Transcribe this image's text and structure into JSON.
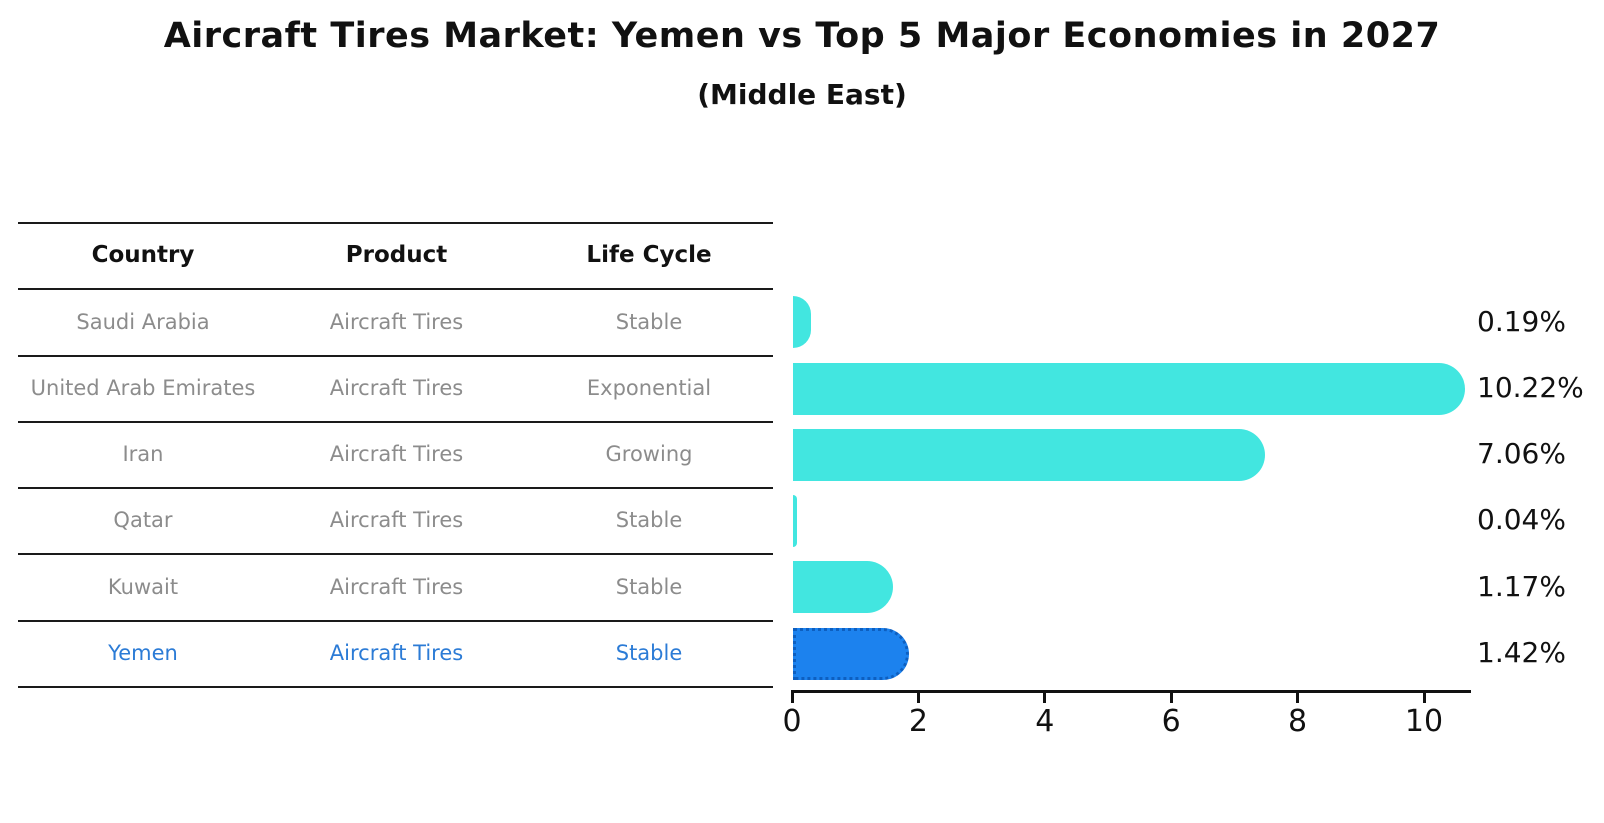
{
  "page": {
    "background": "#ffffff"
  },
  "chart_data": {
    "type": "bar",
    "orientation": "horizontal",
    "title": "Aircraft Tires Market: Yemen vs Top 5 Major Economies in 2027",
    "subtitle": "(Middle East)",
    "categories": [
      "Saudi Arabia",
      "United Arab Emirates",
      "Iran",
      "Qatar",
      "Kuwait",
      "Yemen"
    ],
    "values": [
      0.19,
      10.22,
      7.06,
      0.04,
      1.17,
      1.42
    ],
    "value_labels": [
      "0.19%",
      "10.22%",
      "7.06%",
      "0.04%",
      "1.17%",
      "1.42%"
    ],
    "xlabel": "",
    "ylabel": "",
    "xticks": [
      0,
      2,
      4,
      6,
      8,
      10
    ],
    "xlim": [
      0,
      10.72
    ],
    "grid": false,
    "legend": false,
    "bar_color": "#42E6E0",
    "highlight": {
      "index": 5,
      "category": "Yemen",
      "color": "#1C82EE",
      "edge_style": "dotted",
      "edge_color": "#0D5FC0"
    }
  },
  "table": {
    "headers": [
      "Country",
      "Product",
      "Life Cycle"
    ],
    "rows": [
      [
        "Saudi Arabia",
        "Aircraft Tires",
        "Stable"
      ],
      [
        "United Arab Emirates",
        "Aircraft Tires",
        "Exponential"
      ],
      [
        "Iran",
        "Aircraft Tires",
        "Growing"
      ],
      [
        "Qatar",
        "Aircraft Tires",
        "Stable"
      ],
      [
        "Kuwait",
        "Aircraft Tires",
        "Stable"
      ],
      [
        "Yemen",
        "Aircraft Tires",
        "Stable"
      ]
    ],
    "highlight_row": 5,
    "colors": {
      "header_text": "#111111",
      "row_text": "#8C8C8C",
      "highlight_text": "#2B7BD6",
      "line": "#1a1a1a"
    }
  }
}
